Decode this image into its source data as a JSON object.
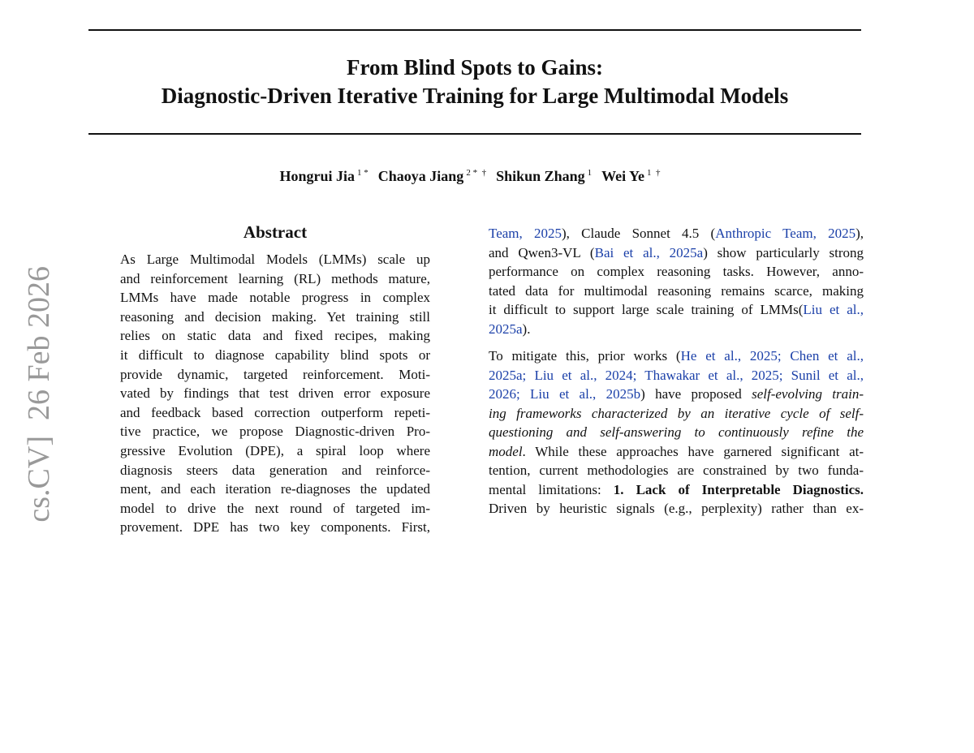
{
  "sidebar": "cs.CV]  26 Feb 2026",
  "title": [
    "From Blind Spots to Gains:",
    "Diagnostic-Driven Iterative Training for Large Multimodal Models"
  ],
  "authors": [
    {
      "name": "Hongrui Jia",
      "marks": "1 *"
    },
    {
      "name": "Chaoya Jiang",
      "marks": "2 *  †"
    },
    {
      "name": "Shikun Zhang",
      "marks": "1"
    },
    {
      "name": "Wei Ye",
      "marks": "1  †"
    }
  ],
  "abstract": {
    "heading": "Abstract",
    "lines": [
      "As Large Multimodal Models (LMMs) scale up",
      "and reinforcement learning (RL) methods mature,",
      "LMMs have made notable progress in complex",
      "reasoning and decision making. Yet training still",
      "relies on static data and fixed recipes, making",
      "it difficult to diagnose capability blind spots or",
      "provide dynamic, targeted reinforcement. Moti-",
      "vated by findings that test driven error exposure",
      "and feedback based correction outperform repeti-",
      "tive practice, we propose Diagnostic-driven Pro-",
      "gressive Evolution (DPE), a spiral loop where",
      "diagnosis steers data generation and reinforce-",
      "ment, and each iteration re-diagnoses the updated",
      "model to drive the next round of targeted im-",
      "provement. DPE has two key components. First,"
    ]
  },
  "right_column": {
    "paragraphs": [
      {
        "continues": false,
        "lines": [
          [
            {
              "text": "Team, 2025",
              "style": "link"
            },
            "), Claude Sonnet 4.5 (",
            {
              "text": "Anthropic Team, 2025",
              "style": "link"
            },
            "),"
          ],
          [
            "and Qwen3-VL (",
            {
              "text": "Bai et al., 2025a",
              "style": "link"
            },
            ") show particularly strong"
          ],
          [
            "performance on complex reasoning tasks. However, anno-"
          ],
          [
            "tated data for multimodal reasoning remains scarce, making"
          ],
          [
            "it difficult to support large scale training of LMMs(",
            {
              "text": "Liu et al.,",
              "style": "link"
            }
          ],
          [
            {
              "text": "2025a",
              "style": "link"
            },
            ")."
          ]
        ]
      },
      {
        "continues": true,
        "lines": [
          [
            "To mitigate this, prior works (",
            {
              "text": "He et al., 2025; Chen et al.,",
              "style": "link"
            }
          ],
          [
            {
              "text": "2025a; Liu et al., 2024; Thawakar et al., 2025; Sunil et al.,",
              "style": "link"
            }
          ],
          [
            {
              "text": "2026; Liu et al., 2025b",
              "style": "link"
            },
            ") have proposed ",
            {
              "text": "self-evolving train-",
              "style": "italic"
            }
          ],
          [
            {
              "text": "ing frameworks characterized by an iterative cycle of self-",
              "style": "italic"
            }
          ],
          [
            {
              "text": "questioning and self-answering to continuously refine the",
              "style": "italic"
            }
          ],
          [
            {
              "text": "model",
              "style": "italic"
            },
            ". While these approaches have garnered significant at-"
          ],
          [
            "tention, current methodologies are constrained by two funda-"
          ],
          [
            "mental limitations: ",
            {
              "text": "1. Lack of Interpretable Diagnostics.",
              "style": "bold"
            }
          ],
          [
            "Driven by heuristic signals (e.g., perplexity) rather than ex-"
          ]
        ]
      }
    ]
  }
}
